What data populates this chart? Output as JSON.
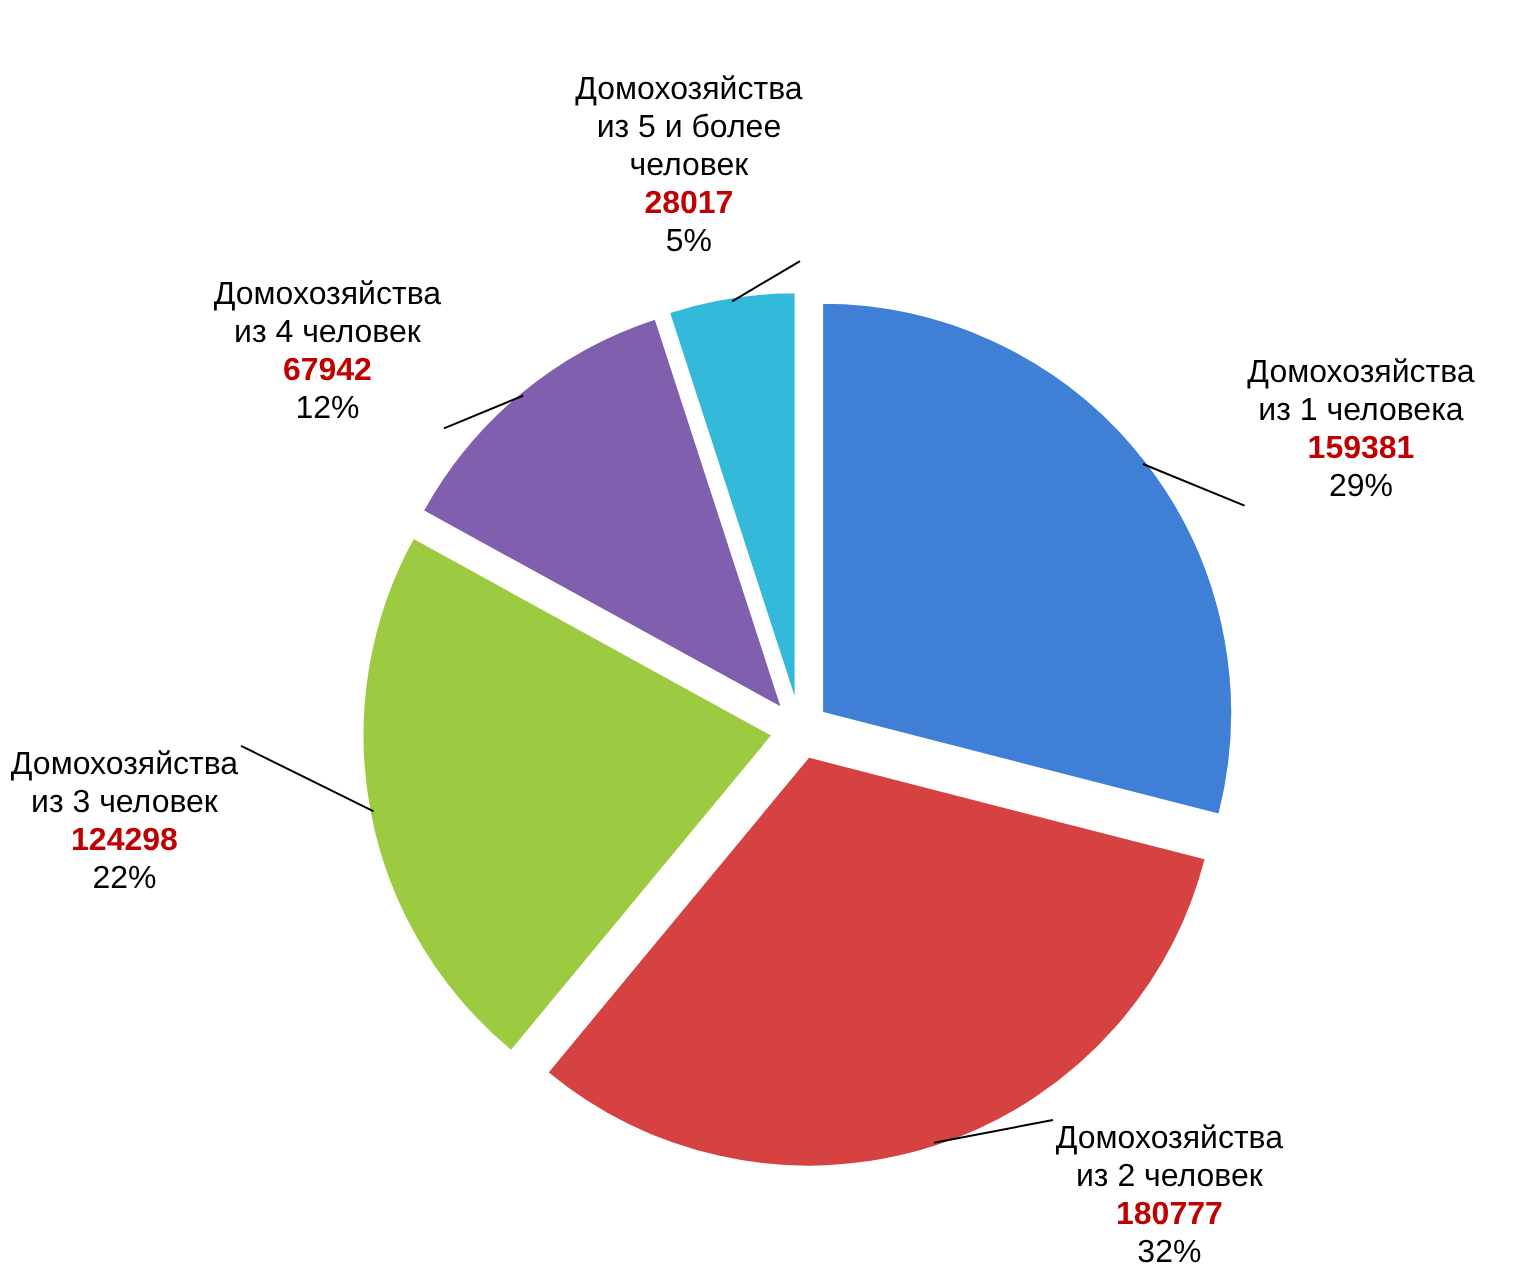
{
  "chart_data": {
    "type": "pie",
    "categories": [
      "Домохозяйства из 1 человека",
      "Домохозяйства из 2 человек",
      "Домохозяйства из 3 человек",
      "Домохозяйства из 4 человек",
      "Домохозяйства из 5 и более человек"
    ],
    "values": [
      29,
      32,
      22,
      12,
      5
    ],
    "colors": [
      "#3f7fd6",
      "#d64242",
      "#9ccb42",
      "#7f5fae",
      "#33b9d9"
    ],
    "value_labels": [
      "159381\n29%",
      "180777\n32%",
      "124298\n22%",
      "67942\n12%",
      "28017\n5%"
    ]
  }
}
